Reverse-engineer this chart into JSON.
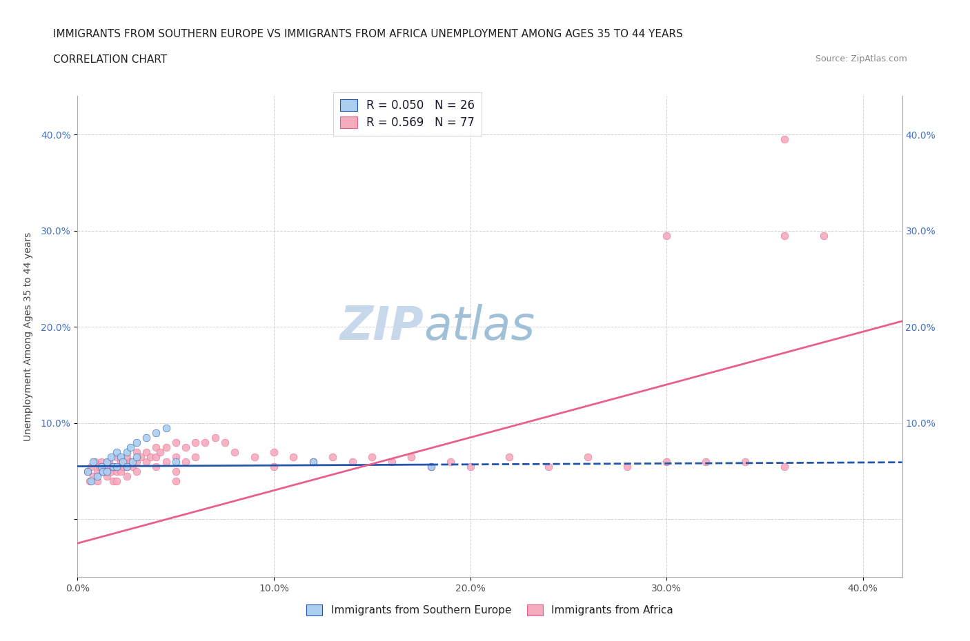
{
  "title_line1": "IMMIGRANTS FROM SOUTHERN EUROPE VS IMMIGRANTS FROM AFRICA UNEMPLOYMENT AMONG AGES 35 TO 44 YEARS",
  "title_line2": "CORRELATION CHART",
  "source": "Source: ZipAtlas.com",
  "ylabel": "Unemployment Among Ages 35 to 44 years",
  "xlim": [
    0.0,
    0.42
  ],
  "ylim": [
    -0.06,
    0.44
  ],
  "xticks": [
    0.0,
    0.1,
    0.2,
    0.3,
    0.4
  ],
  "yticks": [
    0.0,
    0.1,
    0.2,
    0.3,
    0.4
  ],
  "xticklabels": [
    "0.0%",
    "10.0%",
    "20.0%",
    "30.0%",
    "40.0%"
  ],
  "yticklabels_left": [
    "",
    "10.0%",
    "20.0%",
    "30.0%",
    "40.0%"
  ],
  "yticklabels_right": [
    "",
    "10.0%",
    "20.0%",
    "30.0%",
    "40.0%"
  ],
  "watermark_zip": "ZIP",
  "watermark_atlas": "atlas",
  "legend_blue_label": "R = 0.050   N = 26",
  "legend_pink_label": "R = 0.569   N = 77",
  "blue_color": "#AACFEF",
  "pink_color": "#F4ABBE",
  "blue_line_color": "#2255AA",
  "pink_line_color": "#E8608A",
  "blue_scatter": [
    [
      0.005,
      0.05
    ],
    [
      0.007,
      0.04
    ],
    [
      0.008,
      0.06
    ],
    [
      0.01,
      0.045
    ],
    [
      0.012,
      0.055
    ],
    [
      0.013,
      0.05
    ],
    [
      0.015,
      0.06
    ],
    [
      0.015,
      0.05
    ],
    [
      0.017,
      0.065
    ],
    [
      0.018,
      0.055
    ],
    [
      0.02,
      0.07
    ],
    [
      0.02,
      0.055
    ],
    [
      0.022,
      0.065
    ],
    [
      0.023,
      0.06
    ],
    [
      0.025,
      0.07
    ],
    [
      0.025,
      0.055
    ],
    [
      0.027,
      0.075
    ],
    [
      0.028,
      0.06
    ],
    [
      0.03,
      0.08
    ],
    [
      0.03,
      0.065
    ],
    [
      0.035,
      0.085
    ],
    [
      0.04,
      0.09
    ],
    [
      0.045,
      0.095
    ],
    [
      0.05,
      0.06
    ],
    [
      0.12,
      0.06
    ],
    [
      0.18,
      0.055
    ]
  ],
  "pink_scatter": [
    [
      0.005,
      0.05
    ],
    [
      0.006,
      0.04
    ],
    [
      0.007,
      0.055
    ],
    [
      0.008,
      0.045
    ],
    [
      0.009,
      0.06
    ],
    [
      0.01,
      0.05
    ],
    [
      0.01,
      0.04
    ],
    [
      0.011,
      0.055
    ],
    [
      0.012,
      0.06
    ],
    [
      0.013,
      0.05
    ],
    [
      0.015,
      0.055
    ],
    [
      0.015,
      0.045
    ],
    [
      0.016,
      0.06
    ],
    [
      0.017,
      0.05
    ],
    [
      0.018,
      0.055
    ],
    [
      0.018,
      0.04
    ],
    [
      0.02,
      0.065
    ],
    [
      0.02,
      0.05
    ],
    [
      0.02,
      0.04
    ],
    [
      0.022,
      0.06
    ],
    [
      0.022,
      0.05
    ],
    [
      0.023,
      0.055
    ],
    [
      0.025,
      0.065
    ],
    [
      0.025,
      0.055
    ],
    [
      0.025,
      0.045
    ],
    [
      0.027,
      0.06
    ],
    [
      0.028,
      0.055
    ],
    [
      0.03,
      0.07
    ],
    [
      0.03,
      0.06
    ],
    [
      0.03,
      0.05
    ],
    [
      0.032,
      0.065
    ],
    [
      0.035,
      0.07
    ],
    [
      0.035,
      0.06
    ],
    [
      0.037,
      0.065
    ],
    [
      0.04,
      0.075
    ],
    [
      0.04,
      0.065
    ],
    [
      0.04,
      0.055
    ],
    [
      0.042,
      0.07
    ],
    [
      0.045,
      0.075
    ],
    [
      0.045,
      0.06
    ],
    [
      0.05,
      0.08
    ],
    [
      0.05,
      0.065
    ],
    [
      0.05,
      0.05
    ],
    [
      0.05,
      0.04
    ],
    [
      0.055,
      0.075
    ],
    [
      0.055,
      0.06
    ],
    [
      0.06,
      0.08
    ],
    [
      0.06,
      0.065
    ],
    [
      0.065,
      0.08
    ],
    [
      0.07,
      0.085
    ],
    [
      0.075,
      0.08
    ],
    [
      0.08,
      0.07
    ],
    [
      0.09,
      0.065
    ],
    [
      0.1,
      0.07
    ],
    [
      0.1,
      0.055
    ],
    [
      0.11,
      0.065
    ],
    [
      0.12,
      0.06
    ],
    [
      0.13,
      0.065
    ],
    [
      0.14,
      0.06
    ],
    [
      0.15,
      0.065
    ],
    [
      0.16,
      0.06
    ],
    [
      0.17,
      0.065
    ],
    [
      0.18,
      0.055
    ],
    [
      0.19,
      0.06
    ],
    [
      0.2,
      0.055
    ],
    [
      0.22,
      0.065
    ],
    [
      0.24,
      0.055
    ],
    [
      0.26,
      0.065
    ],
    [
      0.28,
      0.055
    ],
    [
      0.3,
      0.06
    ],
    [
      0.32,
      0.06
    ],
    [
      0.34,
      0.06
    ],
    [
      0.36,
      0.055
    ],
    [
      0.36,
      0.295
    ],
    [
      0.38,
      0.295
    ],
    [
      0.36,
      0.395
    ],
    [
      0.3,
      0.295
    ]
  ],
  "blue_line_intercept": 0.055,
  "blue_line_slope": 0.01,
  "blue_line_x_end_solid": 0.18,
  "pink_line_intercept": -0.025,
  "pink_line_slope": 0.55,
  "grid_color": "#CCCCCC",
  "background_color": "#FFFFFF",
  "title_fontsize": 11,
  "axis_label_fontsize": 10,
  "tick_fontsize": 10,
  "legend_fontsize": 12,
  "watermark_fontsize": 48,
  "bottom_legend_blue": "Immigrants from Southern Europe",
  "bottom_legend_pink": "Immigrants from Africa"
}
